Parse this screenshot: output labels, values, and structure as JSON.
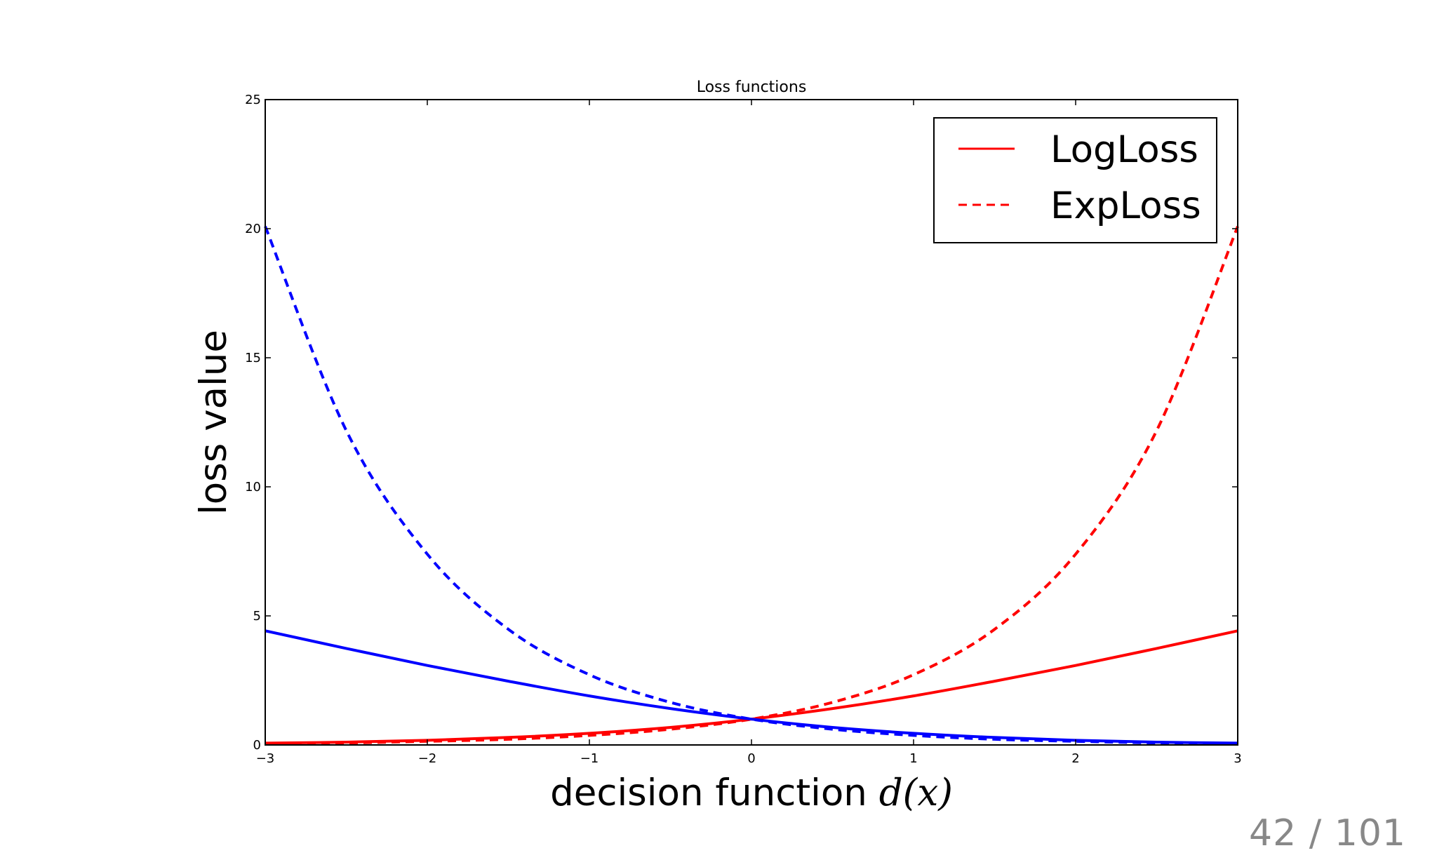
{
  "slide": {
    "page_number": "42 / 101"
  },
  "chart_data": {
    "type": "line",
    "title": "Loss functions",
    "xlabel": "decision function",
    "xlabel_math": "d(x)",
    "ylabel": "loss value",
    "xlim": [
      -3,
      3
    ],
    "ylim": [
      0,
      25
    ],
    "xticks": [
      -3,
      -2,
      -1,
      0,
      1,
      2,
      3
    ],
    "xtick_labels": [
      "−3",
      "−2",
      "−1",
      "0",
      "1",
      "2",
      "3"
    ],
    "yticks": [
      0,
      5,
      10,
      15,
      20,
      25
    ],
    "ytick_labels": [
      "0",
      "5",
      "10",
      "15",
      "20",
      "25"
    ],
    "grid": false,
    "legend": {
      "location": "upper right",
      "entries": [
        {
          "label": "LogLoss",
          "color": "#ff0000",
          "dash": "solid"
        },
        {
          "label": "ExpLoss",
          "color": "#ff0000",
          "dash": "dashed"
        }
      ]
    },
    "colors": {
      "red": "#ff0000",
      "blue": "#0000ff"
    },
    "series": [
      {
        "name": "LogLoss",
        "color": "#ff0000",
        "dash": "solid",
        "x": [
          -3,
          -2.5,
          -2,
          -1.5,
          -1,
          -0.5,
          0,
          0.5,
          1,
          1.5,
          2,
          2.5,
          3
        ],
        "y": [
          0.07,
          0.11,
          0.18,
          0.29,
          0.45,
          0.68,
          1.0,
          1.41,
          1.9,
          2.47,
          3.08,
          3.74,
          4.42
        ]
      },
      {
        "color": "#ff0000",
        "dash": "dashed",
        "x": [
          -3,
          -2.5,
          -2,
          -1.5,
          -1,
          -0.5,
          0,
          0.5,
          1,
          1.5,
          2,
          2.5,
          3
        ],
        "y": [
          0.05,
          0.08,
          0.14,
          0.22,
          0.37,
          0.61,
          1.0,
          1.65,
          2.72,
          4.48,
          7.39,
          12.18,
          20.09
        ]
      },
      {
        "color": "#0000ff",
        "dash": "solid",
        "x": [
          -3,
          -2.5,
          -2,
          -1.5,
          -1,
          -0.5,
          0,
          0.5,
          1,
          1.5,
          2,
          2.5,
          3
        ],
        "y": [
          4.42,
          3.74,
          3.08,
          2.47,
          1.9,
          1.41,
          1.0,
          0.68,
          0.45,
          0.29,
          0.18,
          0.11,
          0.07
        ]
      },
      {
        "color": "#0000ff",
        "dash": "dashed",
        "x": [
          -3,
          -2.5,
          -2,
          -1.5,
          -1,
          -0.5,
          0,
          0.5,
          1,
          1.5,
          2,
          2.5,
          3
        ],
        "y": [
          20.09,
          12.18,
          7.39,
          4.48,
          2.72,
          1.65,
          1.0,
          0.61,
          0.37,
          0.22,
          0.14,
          0.08,
          0.05
        ]
      }
    ]
  }
}
